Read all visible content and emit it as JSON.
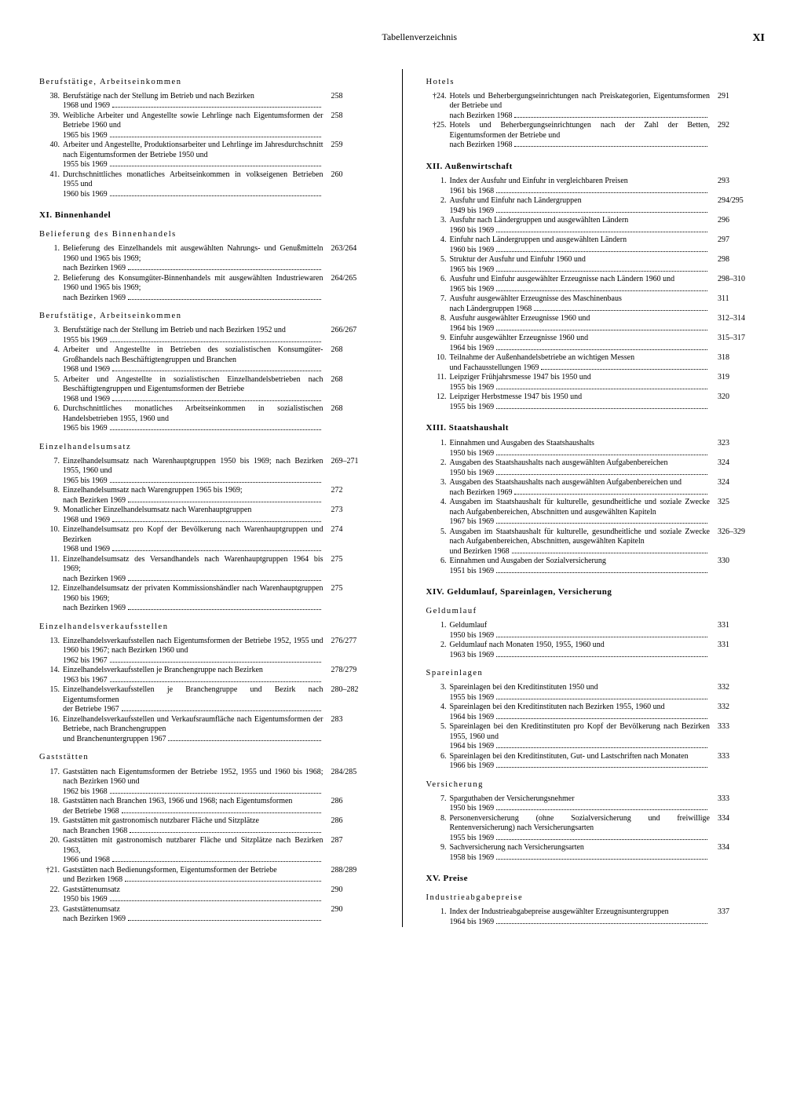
{
  "header": {
    "title": "Tabellenverzeichnis",
    "pageRoman": "XI"
  },
  "left": [
    {
      "type": "subsection",
      "text": "Berufstätige, Arbeitseinkommen"
    },
    {
      "num": "38.",
      "text": "Berufstätige nach der Stellung im Betrieb und nach Bezirken 1968 und 1969",
      "page": "258"
    },
    {
      "num": "39.",
      "text": "Weibliche Arbeiter und Angestellte sowie Lehrlinge nach Eigentumsformen der Betriebe 1960 und 1965 bis 1969",
      "page": "258"
    },
    {
      "num": "40.",
      "text": "Arbeiter und Angestellte, Produktionsarbeiter und Lehrlinge im Jahresdurchschnitt nach Eigentumsformen der Betriebe 1950 und 1955 bis 1969",
      "page": "259"
    },
    {
      "num": "41.",
      "text": "Durchschnittliches monatliches Arbeitseinkommen in volkseigenen Betrieben 1955 und 1960 bis 1969",
      "page": "260"
    },
    {
      "type": "section",
      "text": "XI. Binnenhandel"
    },
    {
      "type": "subsection",
      "text": "Belieferung des Binnenhandels"
    },
    {
      "num": "1.",
      "text": "Belieferung des Einzelhandels mit ausgewählten Nahrungs- und Genußmitteln 1960 und 1965 bis 1969; nach Bezirken 1969",
      "page": "263/264"
    },
    {
      "num": "2.",
      "text": "Belieferung des Konsumgüter-Binnenhandels mit ausgewählten Industriewaren 1960 und 1965 bis 1969; nach Bezirken 1969",
      "page": "264/265"
    },
    {
      "type": "subsection",
      "text": "Berufstätige, Arbeitseinkommen"
    },
    {
      "num": "3.",
      "text": "Berufstätige nach der Stellung im Betrieb und nach Bezirken 1952 und 1955 bis 1969",
      "page": "266/267"
    },
    {
      "num": "4.",
      "text": "Arbeiter und Angestellte in Betrieben des sozialistischen Konsumgüter-Großhandels nach Beschäftigtengruppen und Branchen 1968 und 1969",
      "page": "268"
    },
    {
      "num": "5.",
      "text": "Arbeiter und Angestellte in sozialistischen Einzelhandelsbetrieben nach Beschäftigtengruppen und Eigentumsformen der Betriebe 1968 und 1969",
      "page": "268"
    },
    {
      "num": "6.",
      "text": "Durchschnittliches monatliches Arbeitseinkommen in sozialistischen Handelsbetrieben 1955, 1960 und 1965 bis 1969",
      "page": "268"
    },
    {
      "type": "subsection",
      "text": "Einzelhandelsumsatz"
    },
    {
      "num": "7.",
      "text": "Einzelhandelsumsatz nach Warenhauptgruppen 1950 bis 1969; nach Bezirken 1955, 1960 und 1965 bis 1969",
      "page": "269–271"
    },
    {
      "num": "8.",
      "text": "Einzelhandelsumsatz nach Warengruppen 1965 bis 1969; nach Bezirken 1969",
      "page": "272"
    },
    {
      "num": "9.",
      "text": "Monatlicher Einzelhandelsumsatz nach Warenhauptgruppen 1968 und 1969",
      "page": "273"
    },
    {
      "num": "10.",
      "text": "Einzelhandelsumsatz pro Kopf der Bevölkerung nach Warenhauptgruppen und Bezirken 1968 und 1969",
      "page": "274"
    },
    {
      "num": "11.",
      "text": "Einzelhandelsumsatz des Versandhandels nach Warenhauptgruppen 1964 bis 1969; nach Bezirken 1969",
      "page": "275"
    },
    {
      "num": "12.",
      "text": "Einzelhandelsumsatz der privaten Kommissionshändler nach Warenhauptgruppen 1960 bis 1969; nach Bezirken 1969",
      "page": "275"
    },
    {
      "type": "subsection",
      "text": "Einzelhandelsverkaufsstellen"
    },
    {
      "num": "13.",
      "text": "Einzelhandelsverkaufsstellen nach Eigentumsformen der Betriebe 1952, 1955 und 1960 bis 1967; nach Bezirken 1960 und 1962 bis 1967",
      "page": "276/277"
    },
    {
      "num": "14.",
      "text": "Einzelhandelsverkaufsstellen je Branchengruppe nach Bezirken 1963 bis 1967",
      "page": "278/279"
    },
    {
      "num": "15.",
      "text": "Einzelhandelsverkaufsstellen je Branchengruppe und Bezirk nach Eigentumsformen der Betriebe 1967",
      "page": "280–282"
    },
    {
      "num": "16.",
      "text": "Einzelhandelsverkaufsstellen und Verkaufsraumfläche nach Eigentumsformen der Betriebe, nach Branchengruppen und Branchenuntergruppen 1967",
      "page": "283"
    },
    {
      "type": "subsection",
      "text": "Gaststätten"
    },
    {
      "num": "17.",
      "text": "Gaststätten nach Eigentumsformen der Betriebe 1952, 1955 und 1960 bis 1968; nach Bezirken 1960 und 1962 bis 1968",
      "page": "284/285"
    },
    {
      "num": "18.",
      "text": "Gaststätten nach Branchen 1963, 1966 und 1968; nach Eigentumsformen der Betriebe 1968",
      "page": "286"
    },
    {
      "num": "19.",
      "text": "Gaststätten mit gastronomisch nutzbarer Fläche und Sitzplätze nach Branchen 1968",
      "page": "286"
    },
    {
      "num": "20.",
      "text": "Gaststätten mit gastronomisch nutzbarer Fläche und Sitzplätze nach Bezirken 1963, 1966 und 1968",
      "page": "287"
    },
    {
      "num": "†21.",
      "text": "Gaststätten nach Bedienungsformen, Eigentumsformen der Betriebe und Bezirken 1968",
      "page": "288/289"
    },
    {
      "num": "22.",
      "text": "Gaststättenumsatz 1950 bis 1969",
      "page": "290"
    },
    {
      "num": "23.",
      "text": "Gaststättenumsatz nach Bezirken 1969",
      "page": "290"
    }
  ],
  "right": [
    {
      "type": "subsection",
      "text": "Hotels"
    },
    {
      "num": "†24.",
      "text": "Hotels und Beherbergungseinrichtungen nach Preiskategorien, Eigentumsformen der Betriebe und nach Bezirken 1968",
      "page": "291"
    },
    {
      "num": "†25.",
      "text": "Hotels und Beherbergungseinrichtungen nach der Zahl der Betten, Eigentumsformen der Betriebe und nach Bezirken 1968",
      "page": "292"
    },
    {
      "type": "section",
      "text": "XII. Außenwirtschaft"
    },
    {
      "num": "1.",
      "text": "Index der Ausfuhr und Einfuhr in vergleichbaren Preisen 1961 bis 1968",
      "page": "293"
    },
    {
      "num": "2.",
      "text": "Ausfuhr und Einfuhr nach Ländergruppen 1949 bis 1969",
      "page": "294/295"
    },
    {
      "num": "3.",
      "text": "Ausfuhr nach Ländergruppen und ausgewählten Ländern 1960 bis 1969",
      "page": "296"
    },
    {
      "num": "4.",
      "text": "Einfuhr nach Ländergruppen und ausgewählten Ländern 1960 bis 1969",
      "page": "297"
    },
    {
      "num": "5.",
      "text": "Struktur der Ausfuhr und Einfuhr 1960 und 1965 bis 1969",
      "page": "298"
    },
    {
      "num": "6.",
      "text": "Ausfuhr und Einfuhr ausgewählter Erzeugnisse nach Ländern 1960 und 1965 bis 1969",
      "page": "298–310"
    },
    {
      "num": "7.",
      "text": "Ausfuhr ausgewählter Erzeugnisse des Maschinenbaus nach Ländergruppen 1968",
      "page": "311"
    },
    {
      "num": "8.",
      "text": "Ausfuhr ausgewählter Erzeugnisse 1960 und 1964 bis 1969",
      "page": "312–314"
    },
    {
      "num": "9.",
      "text": "Einfuhr ausgewählter Erzeugnisse 1960 und 1964 bis 1969",
      "page": "315–317"
    },
    {
      "num": "10.",
      "text": "Teilnahme der Außenhandelsbetriebe an wichtigen Messen und Fachausstellungen 1969",
      "page": "318"
    },
    {
      "num": "11.",
      "text": "Leipziger Frühjahrsmesse 1947 bis 1950 und 1955 bis 1969",
      "page": "319"
    },
    {
      "num": "12.",
      "text": "Leipziger Herbstmesse 1947 bis 1950 und 1955 bis 1969",
      "page": "320"
    },
    {
      "type": "section",
      "text": "XIII. Staatshaushalt"
    },
    {
      "num": "1.",
      "text": "Einnahmen und Ausgaben des Staatshaushalts 1950 bis 1969",
      "page": "323"
    },
    {
      "num": "2.",
      "text": "Ausgaben des Staatshaushalts nach ausgewählten Aufgabenbereichen 1950 bis 1969",
      "page": "324"
    },
    {
      "num": "3.",
      "text": "Ausgaben des Staatshaushalts nach ausgewählten Aufgabenbereichen und nach Bezirken 1969",
      "page": "324"
    },
    {
      "num": "4.",
      "text": "Ausgaben im Staatshaushalt für kulturelle, gesundheitliche und soziale Zwecke nach Aufgabenbereichen, Abschnitten und ausgewählten Kapiteln 1967 bis 1969",
      "page": "325"
    },
    {
      "num": "5.",
      "text": "Ausgaben im Staatshaushalt für kulturelle, gesundheitliche und soziale Zwecke nach Aufgabenbereichen, Abschnitten, ausgewählten Kapiteln und Bezirken 1968",
      "page": "326–329"
    },
    {
      "num": "6.",
      "text": "Einnahmen und Ausgaben der Sozialversicherung 1951 bis 1969",
      "page": "330"
    },
    {
      "type": "section",
      "text": "XIV. Geldumlauf, Spareinlagen, Versicherung"
    },
    {
      "type": "subsection",
      "text": "Geldumlauf"
    },
    {
      "num": "1.",
      "text": "Geldumlauf 1950 bis 1969",
      "page": "331"
    },
    {
      "num": "2.",
      "text": "Geldumlauf nach Monaten 1950, 1955, 1960 und 1963 bis 1969",
      "page": "331"
    },
    {
      "type": "subsection",
      "text": "Spareinlagen"
    },
    {
      "num": "3.",
      "text": "Spareinlagen bei den Kreditinstituten 1950 und 1955 bis 1969",
      "page": "332"
    },
    {
      "num": "4.",
      "text": "Spareinlagen bei den Kreditinstituten nach Bezirken 1955, 1960 und 1964 bis 1969",
      "page": "332"
    },
    {
      "num": "5.",
      "text": "Spareinlagen bei den Kreditinstituten pro Kopf der Bevölkerung nach Bezirken 1955, 1960 und 1964 bis 1969",
      "page": "333"
    },
    {
      "num": "6.",
      "text": "Spareinlagen bei den Kreditinstituten, Gut- und Lastschriften nach Monaten 1966 bis 1969",
      "page": "333"
    },
    {
      "type": "subsection",
      "text": "Versicherung"
    },
    {
      "num": "7.",
      "text": "Sparguthaben der Versicherungsnehmer 1950 bis 1969",
      "page": "333"
    },
    {
      "num": "8.",
      "text": "Personenversicherung (ohne Sozialversicherung und freiwillige Rentenversicherung) nach Versicherungsarten 1955 bis 1969",
      "page": "334"
    },
    {
      "num": "9.",
      "text": "Sachversicherung nach Versicherungsarten 1958 bis 1969",
      "page": "334"
    },
    {
      "type": "section",
      "text": "XV. Preise"
    },
    {
      "type": "subsection",
      "text": "Industrieabgabepreise"
    },
    {
      "num": "1.",
      "text": "Index der Industrieabgabepreise ausgewählter Erzeugnisuntergruppen 1964 bis 1969",
      "page": "337"
    }
  ]
}
